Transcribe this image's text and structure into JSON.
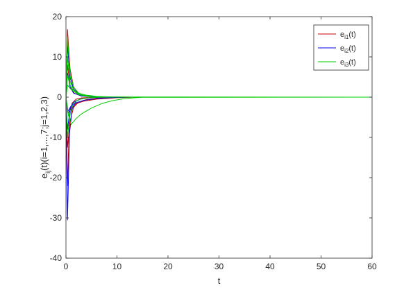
{
  "chart_data": {
    "type": "line",
    "title": "",
    "xlabel": "t",
    "ylabel": {
      "base": "e",
      "sub": "ij",
      "rest": "(t)(i=1,...,7;j=1,2,3)"
    },
    "xlim": [
      0,
      60
    ],
    "ylim": [
      -40,
      20
    ],
    "xticks": [
      "0",
      "10",
      "20",
      "30",
      "40",
      "50",
      "60"
    ],
    "yticks": [
      "-40",
      "-30",
      "-20",
      "-10",
      "0",
      "10",
      "20"
    ],
    "grid": false,
    "legend_position": "top-right",
    "legend": [
      {
        "base": "e",
        "sub": "i1",
        "rest": "(t)",
        "color": "#cc0000"
      },
      {
        "base": "e",
        "sub": "i2",
        "rest": "(t)",
        "color": "#0000ee"
      },
      {
        "base": "e",
        "sub": "i3",
        "rest": "(t)",
        "color": "#00cc00"
      }
    ],
    "series": [
      {
        "color": "#cc0000",
        "x": [
          0,
          0.3,
          0.8,
          1.5,
          2.5,
          4,
          6,
          9,
          13,
          20,
          60
        ],
        "y": [
          0,
          16.8,
          7,
          2.5,
          0.8,
          0.3,
          0.1,
          0.02,
          0,
          0,
          0
        ]
      },
      {
        "color": "#cc0000",
        "x": [
          0,
          0.3,
          0.8,
          1.5,
          2.5,
          4,
          6,
          9,
          13,
          20,
          60
        ],
        "y": [
          0,
          -12.5,
          -6,
          -2.5,
          -1.2,
          -0.6,
          -0.25,
          -0.08,
          0,
          0,
          0
        ]
      },
      {
        "color": "#cc0000",
        "x": [
          0,
          0.3,
          0.7,
          1.2,
          2,
          3,
          5,
          8,
          12,
          60
        ],
        "y": [
          0,
          -22,
          -5,
          -1.5,
          -0.5,
          -0.2,
          -0.05,
          0,
          0,
          0
        ]
      },
      {
        "color": "#cc0000",
        "x": [
          0,
          0.4,
          1,
          2,
          3.5,
          6,
          10,
          14,
          60
        ],
        "y": [
          0,
          -4,
          -2.8,
          -1.6,
          -1.0,
          -0.5,
          -0.15,
          0,
          0
        ]
      },
      {
        "color": "#cc0000",
        "x": [
          0,
          0.3,
          0.8,
          1.6,
          3,
          5,
          8,
          60
        ],
        "y": [
          0,
          8,
          3,
          1,
          0.3,
          0.1,
          0,
          0
        ]
      },
      {
        "color": "#0000ee",
        "x": [
          0,
          0.3,
          0.7,
          1.2,
          2,
          3,
          5,
          8,
          12,
          60
        ],
        "y": [
          0,
          -30.5,
          -9,
          -3,
          -1,
          -0.4,
          -0.1,
          0,
          0,
          0
        ]
      },
      {
        "color": "#0000ee",
        "x": [
          0,
          0.3,
          0.8,
          1.5,
          2.5,
          4,
          6,
          9,
          13,
          60
        ],
        "y": [
          0,
          13,
          5,
          2,
          0.8,
          0.3,
          0.1,
          0.02,
          0,
          0
        ]
      },
      {
        "color": "#0000ee",
        "x": [
          0,
          0.4,
          1,
          2,
          3.5,
          6,
          9,
          13,
          60
        ],
        "y": [
          0,
          -3.5,
          -2.2,
          -1.4,
          -0.8,
          -0.35,
          -0.1,
          0,
          0
        ]
      },
      {
        "color": "#0000ee",
        "x": [
          0,
          0.3,
          0.8,
          1.5,
          3,
          5,
          8,
          60
        ],
        "y": [
          0,
          6,
          2.5,
          1,
          0.3,
          0.1,
          0,
          0
        ]
      },
      {
        "color": "#0000ee",
        "x": [
          0,
          0.3,
          0.8,
          1.5,
          3,
          5,
          8,
          60
        ],
        "y": [
          0,
          -8,
          -3,
          -1.2,
          -0.4,
          -0.1,
          0,
          0
        ]
      },
      {
        "color": "#00cc00",
        "x": [
          0,
          0.3,
          0.8,
          1.5,
          2.5,
          4,
          6,
          9,
          13,
          60
        ],
        "y": [
          0,
          15,
          6,
          2.5,
          1,
          0.4,
          0.15,
          0.03,
          0,
          0
        ]
      },
      {
        "color": "#00cc00",
        "x": [
          0,
          0.3,
          0.8,
          1.5,
          2.5,
          4,
          6,
          9,
          13,
          60
        ],
        "y": [
          0,
          10,
          4,
          1.8,
          0.8,
          0.3,
          0.1,
          0.02,
          0,
          0
        ]
      },
      {
        "color": "#00cc00",
        "x": [
          0,
          0.3,
          0.8,
          1.5,
          2.5,
          4,
          6,
          9,
          60
        ],
        "y": [
          0,
          5.5,
          3,
          1.5,
          0.6,
          0.25,
          0.08,
          0,
          0
        ]
      },
      {
        "color": "#00cc00",
        "x": [
          0,
          0.3,
          0.8,
          1.5,
          2.5,
          4,
          6,
          9,
          60
        ],
        "y": [
          0,
          -10,
          -4,
          -1.5,
          -0.6,
          -0.2,
          -0.05,
          0,
          0
        ]
      },
      {
        "color": "#00cc00",
        "x": [
          0,
          0.3,
          0.8,
          1.5,
          2.5,
          4,
          6,
          9,
          60
        ],
        "y": [
          0,
          3,
          2.2,
          1.4,
          0.9,
          0.5,
          0.2,
          0.05,
          0
        ]
      },
      {
        "color": "#00cc00",
        "x": [
          0,
          0.5,
          1,
          2,
          3,
          5,
          7,
          9,
          11,
          13,
          15,
          60
        ],
        "y": [
          0,
          -4.5,
          -6.8,
          -5.3,
          -4.2,
          -2.7,
          -1.6,
          -0.9,
          -0.45,
          -0.2,
          -0.05,
          0
        ]
      }
    ]
  }
}
